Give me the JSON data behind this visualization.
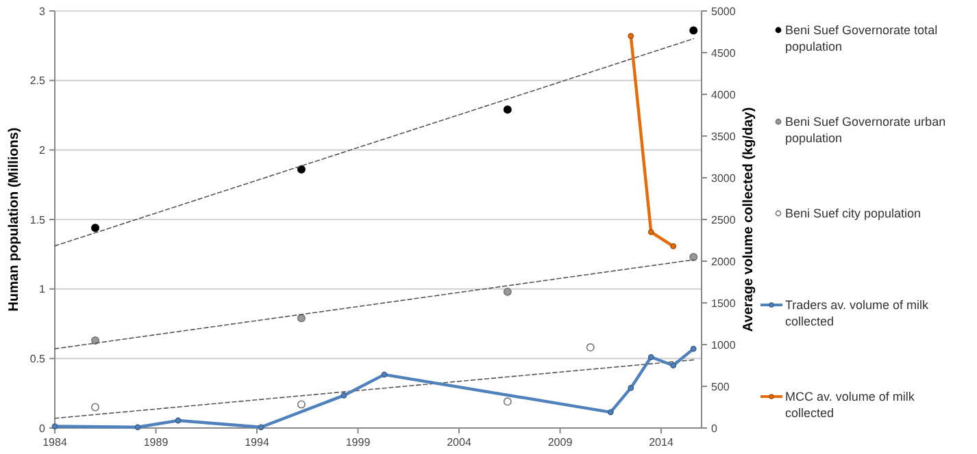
{
  "chart_data": {
    "type": "scatter",
    "ylabel": "Human population (Millions)",
    "y2label": "Average volume collected (kg/day)",
    "xlim": [
      1984,
      2016
    ],
    "xticks": [
      1984,
      1989,
      1994,
      1999,
      2004,
      2009,
      2014
    ],
    "ylim": [
      0,
      3
    ],
    "yticks": [
      0,
      0.5,
      1,
      1.5,
      2,
      2.5,
      3
    ],
    "y2lim": [
      0,
      5000
    ],
    "y2ticks": [
      0,
      500,
      1000,
      1500,
      2000,
      2500,
      3000,
      3500,
      4000,
      4500,
      5000
    ],
    "grid": "y",
    "legend": "right",
    "series": [
      {
        "name": "Beni Suef Governorate total population",
        "color": "#000000",
        "marker": "circle",
        "x": [
          1986,
          1996.2,
          2006.4,
          2015.6
        ],
        "values": [
          1.44,
          1.86,
          2.29,
          2.86
        ]
      },
      {
        "name": "Beni Suef Governorate urban population",
        "color": "#999999",
        "marker": "circle",
        "x": [
          1986,
          1996.2,
          2006.4,
          2015.6
        ],
        "values": [
          0.63,
          0.79,
          0.98,
          1.23
        ]
      },
      {
        "name": "Beni Suef city population",
        "color": "#ffffff",
        "marker": "circle",
        "x": [
          1986,
          1996.2,
          2006.4,
          2010.5
        ],
        "values": [
          0.15,
          0.17,
          0.19,
          0.58
        ]
      },
      {
        "type": "line",
        "color": "#555555",
        "marker": "none",
        "line_style": "dashed",
        "x": [
          1984,
          2015.6
        ],
        "values": [
          1.31,
          2.8
        ]
      },
      {
        "type": "line",
        "color": "#555555",
        "marker": "none",
        "line_style": "dashed",
        "x": [
          1984,
          2015.6
        ],
        "values": [
          0.57,
          1.21
        ]
      },
      {
        "type": "line",
        "color": "#555555",
        "marker": "none",
        "line_style": "dashed",
        "x": [
          1984,
          2015.6
        ],
        "values": [
          0.07,
          0.49
        ]
      },
      {
        "type": "line",
        "axis": "y2",
        "name": "Traders av. volume of milk collected",
        "color": "#4f81bd",
        "marker": "circle",
        "line_style": "solid",
        "x": [
          1984,
          1988.1,
          1990.1,
          1994.2,
          1998.3,
          2000.3,
          2011.5,
          2012.5,
          2013.5,
          2014.6,
          2015.6
        ],
        "values": [
          20,
          10,
          90,
          10,
          390,
          640,
          190,
          480,
          850,
          750,
          950
        ]
      },
      {
        "type": "line",
        "axis": "y2",
        "name": "MCC av. volume of milk collected",
        "color": "#e46c0a",
        "marker": "circle",
        "line_style": "solid",
        "x": [
          2012.5,
          2013.5,
          2014.6
        ],
        "values": [
          4700,
          2350,
          2180
        ]
      }
    ]
  }
}
